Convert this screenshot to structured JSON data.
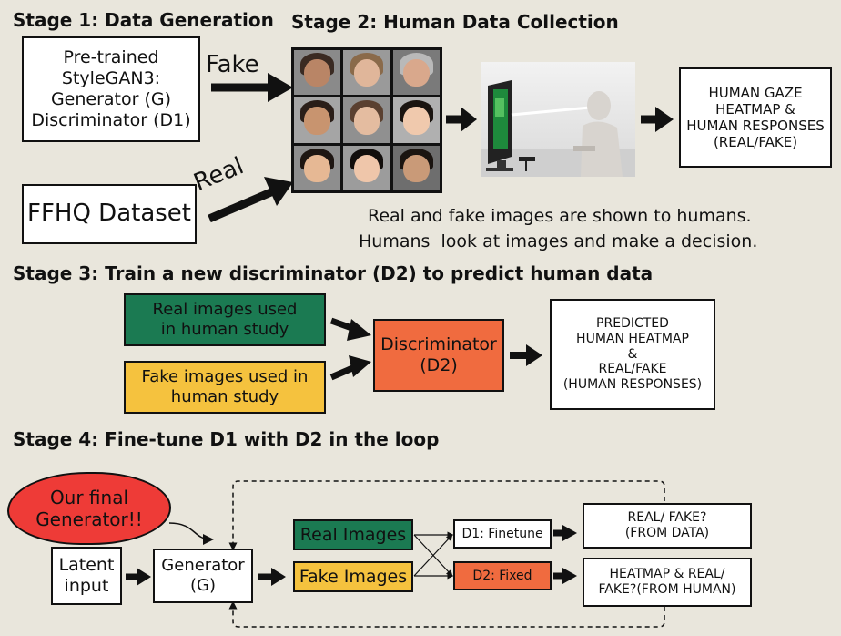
{
  "stage1": {
    "title": "Stage 1: Data Generation",
    "stylegan_box": "Pre-trained\nStyleGAN3:\nGenerator (G)\nDiscriminator (D1)",
    "ffhq_box": "FFHQ Dataset",
    "fake_label": "Fake",
    "real_label": "Real"
  },
  "stage2": {
    "title": "Stage 2: Human Data Collection",
    "output_box": "HUMAN GAZE\nHEATMAP &\nHUMAN RESPONSES\n(REAL/FAKE)",
    "caption_line1": "Real and fake images are shown to humans.",
    "caption_line2": "Humans  look at images and make a decision."
  },
  "stage3": {
    "title": "Stage 3: Train a new discriminator (D2) to predict human data",
    "real_box": "Real images used\nin human study",
    "fake_box": "Fake images used in\nhuman study",
    "disc_box": "Discriminator\n(D2)",
    "output_box": "PREDICTED\nHUMAN HEATMAP\n&\nREAL/FAKE\n(HUMAN RESPONSES)"
  },
  "stage4": {
    "title": "Stage 4: Fine-tune D1 with D2 in the loop",
    "cloud": "Our final\nGenerator!!",
    "latent_box": "Latent\ninput",
    "generator_box": "Generator\n(G)",
    "real_images": "Real Images",
    "fake_images": "Fake Images",
    "d1_box": "D1: Finetune",
    "d2_box": "D2: Fixed",
    "out1": "REAL/ FAKE?\n(FROM DATA)",
    "out2": "HEATMAP &  REAL/\nFAKE?(FROM HUMAN)"
  },
  "colors": {
    "green": "#1b7a52",
    "yellow": "#f5c23e",
    "orange": "#f06b3f",
    "red": "#ee3b37"
  }
}
